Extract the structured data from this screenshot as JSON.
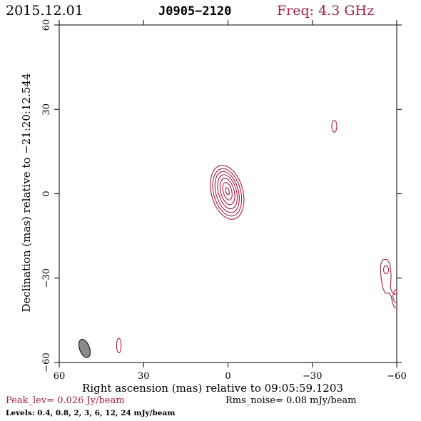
{
  "header": {
    "date": "2015.12.01",
    "source": "J0905−2120",
    "frequency": "Freq: 4.3 GHz"
  },
  "footer": {
    "peak": "Peak_lev=  0.026 Jy/beam",
    "rms": "Rms_noise= 0.08 mJy/beam",
    "levels": "Levels: 0.4,  0.8,    2,    3,    6,   12,   24 mJy/beam"
  },
  "colors": {
    "contour": "#a0204a",
    "beam_fill": "#8a8a8a",
    "axis": "#000000"
  },
  "chart_data": {
    "type": "contour",
    "xlabel": "Right ascension (mas) relative to 09:05:59.1203",
    "ylabel": "Declination (mas) relative to −21:20:12.544",
    "xlim": [
      60,
      -60
    ],
    "ylim": [
      -60,
      60
    ],
    "xticks": [
      60,
      30,
      0,
      -30,
      -60
    ],
    "yticks": [
      -60,
      -30,
      0,
      30,
      60
    ],
    "xtick_labels": [
      "60",
      "30",
      "0",
      "−30",
      "−60"
    ],
    "ytick_labels": [
      "−60",
      "−30",
      "0",
      "30",
      "60"
    ],
    "contour_levels_mjy": [
      0.4,
      0.8,
      2,
      3,
      6,
      12,
      24
    ],
    "core_contours": [
      {
        "cx": 0.3,
        "cy": 0.5,
        "rx": 5.6,
        "ry": 9.8,
        "angle": -15
      },
      {
        "cx": 0.3,
        "cy": 0.5,
        "rx": 4.8,
        "ry": 8.6,
        "angle": -15
      },
      {
        "cx": 0.3,
        "cy": 0.6,
        "rx": 4.0,
        "ry": 7.5,
        "angle": -15
      },
      {
        "cx": 0.2,
        "cy": 0.7,
        "rx": 3.2,
        "ry": 6.2,
        "angle": -15
      },
      {
        "cx": 0.2,
        "cy": 0.8,
        "rx": 2.4,
        "ry": 4.8,
        "angle": -15
      },
      {
        "cx": 0.2,
        "cy": 0.9,
        "rx": 1.5,
        "ry": 3.2,
        "angle": -15
      },
      {
        "cx": 0.2,
        "cy": 0.9,
        "rx": 0.6,
        "ry": 1.3,
        "angle": -15
      }
    ],
    "small_components": [
      {
        "cx": -37.8,
        "cy": 24.0,
        "rx": 0.9,
        "ry": 2.1,
        "angle": 0
      },
      {
        "cx": 38.8,
        "cy": -54.0,
        "rx": 0.8,
        "ry": 2.6,
        "angle": 0
      },
      {
        "cx": -56.2,
        "cy": -27.0,
        "rx": 0.9,
        "ry": 1.4,
        "angle": 0
      }
    ],
    "edge_contours": [
      [
        [
          -54.2,
          -25.5
        ],
        [
          -55.0,
          -23.5
        ],
        [
          -56.5,
          -23.3
        ],
        [
          -57.6,
          -25.0
        ],
        [
          -58.0,
          -29.0
        ],
        [
          -57.8,
          -33.5
        ],
        [
          -58.4,
          -35.0
        ],
        [
          -59.2,
          -35.8
        ],
        [
          -60,
          -35.6
        ]
      ],
      [
        [
          -60,
          -38.9
        ],
        [
          -59.3,
          -38.5
        ],
        [
          -58.8,
          -37.8
        ],
        [
          -58.6,
          -36.2
        ],
        [
          -59.2,
          -34.6
        ],
        [
          -60,
          -33.9
        ]
      ],
      [
        [
          -54.2,
          -25.5
        ],
        [
          -54.4,
          -29.5
        ],
        [
          -55.0,
          -33.5
        ],
        [
          -56.0,
          -35.4
        ],
        [
          -57.3,
          -35.3
        ],
        [
          -58.1,
          -36.6
        ],
        [
          -58.4,
          -38.6
        ],
        [
          -59.1,
          -40.3
        ],
        [
          -60,
          -40.8
        ]
      ]
    ],
    "beam": {
      "cx": 51.0,
      "cy": -55.0,
      "major": 6.8,
      "minor": 3.5,
      "pa_deg": -20
    }
  }
}
